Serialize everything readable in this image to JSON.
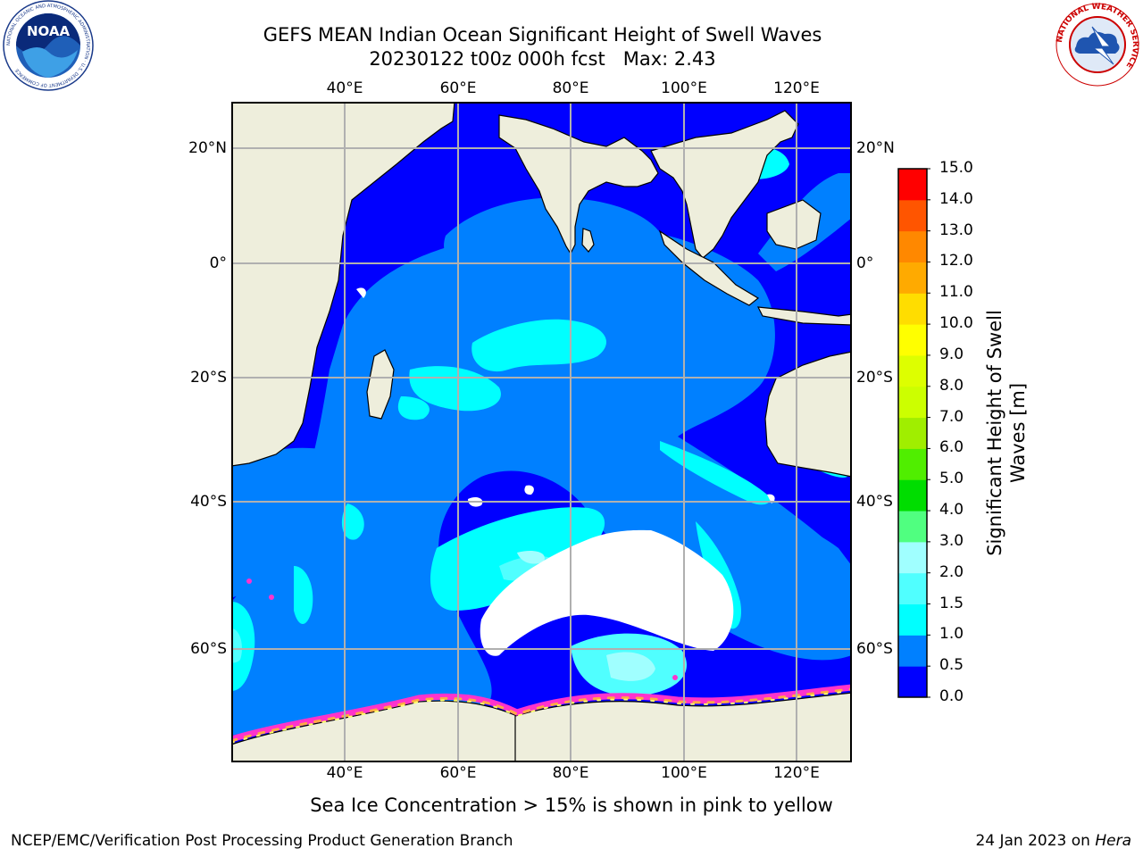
{
  "header": {
    "title_line1": "GEFS MEAN Indian Ocean Significant Height of Swell Waves",
    "title_line2": "20230122 t00z 000h fcst   Max: 2.43"
  },
  "logos": {
    "left": {
      "name": "NOAA",
      "text": "NOAA",
      "ring_text": "NATIONAL OCEANIC AND ATMOSPHERIC ADMINISTRATION · U.S. DEPARTMENT OF COMMERCE"
    },
    "right": {
      "name": "National Weather Service",
      "ring_text": "NATIONAL WEATHER SERVICE"
    }
  },
  "map": {
    "longitude_ticks": [
      {
        "value": 40,
        "label": "40°E"
      },
      {
        "value": 60,
        "label": "60°E"
      },
      {
        "value": 80,
        "label": "80°E"
      },
      {
        "value": 100,
        "label": "100°E"
      },
      {
        "value": 120,
        "label": "120°E"
      }
    ],
    "latitude_ticks": [
      {
        "value": 20,
        "label": "20°N"
      },
      {
        "value": 0,
        "label": "0°"
      },
      {
        "value": -20,
        "label": "20°S"
      },
      {
        "value": -40,
        "label": "40°S"
      },
      {
        "value": -60,
        "label": "60°S"
      }
    ],
    "land_color": "#eeeedc",
    "ice_mask_color": "#ffffff",
    "sea_ice_colors": [
      "#ff33cc",
      "#ffaa44",
      "#ffff66"
    ]
  },
  "colorbar": {
    "title_line1": "Significant Height of Swell",
    "title_line2": "Waves [m]",
    "levels": [
      "0.0",
      "0.5",
      "1.0",
      "1.5",
      "2.0",
      "3.0",
      "4.0",
      "5.0",
      "6.0",
      "7.0",
      "8.0",
      "9.0",
      "10.0",
      "11.0",
      "12.0",
      "13.0",
      "14.0",
      "15.0"
    ],
    "colors": [
      "#0000ff",
      "#0080ff",
      "#00ffff",
      "#50ffff",
      "#a0ffff",
      "#50ff80",
      "#00dd00",
      "#50ee00",
      "#a0ee00",
      "#ccff00",
      "#ddff00",
      "#ffff00",
      "#ffdd00",
      "#ffaa00",
      "#ff8800",
      "#ff5500",
      "#ff0000"
    ]
  },
  "footer": {
    "note": "Sea Ice Concentration > 15% is shown in pink to yellow",
    "credit": "NCEP/EMC/Verification Post Processing Product Generation Branch",
    "date": "24 Jan 2023 on",
    "host": "Hera"
  }
}
